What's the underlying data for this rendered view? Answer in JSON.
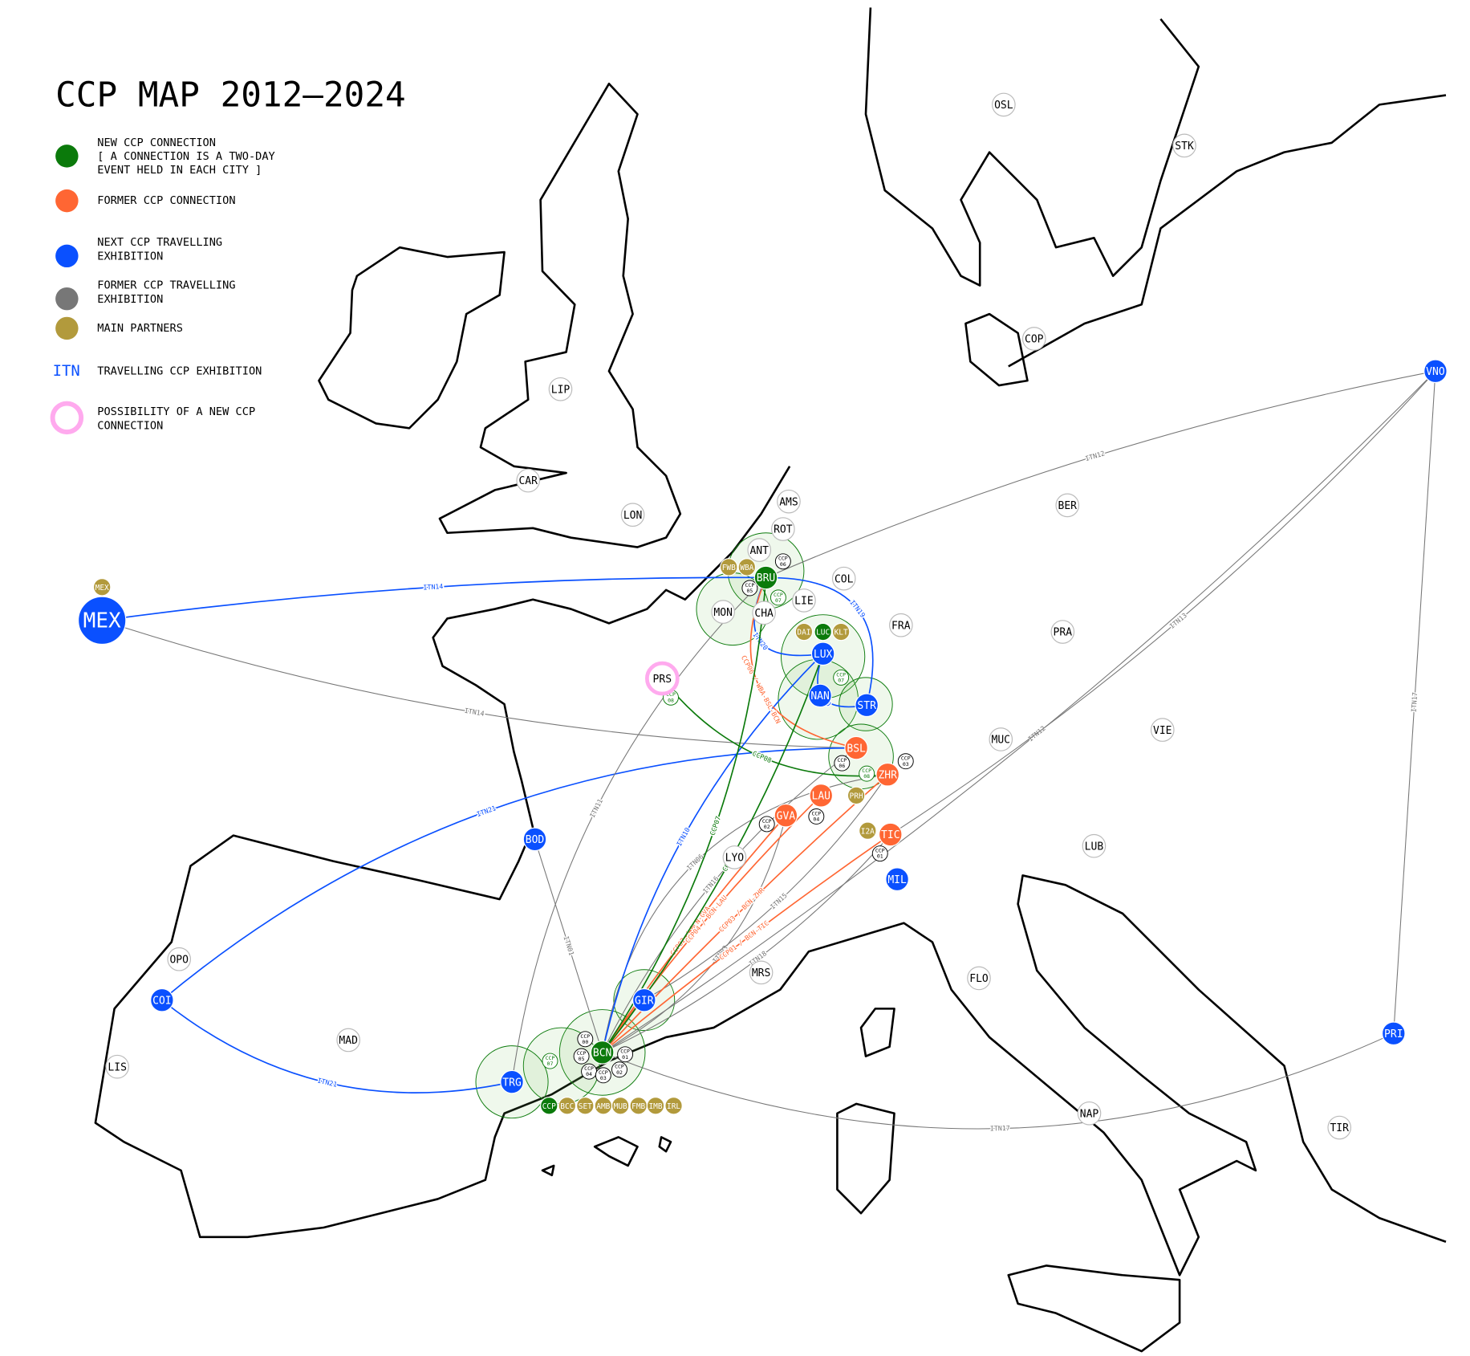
{
  "title": "CCP MAP 2012–2024",
  "legend": [
    {
      "lines": [
        "NEW CCP CONNECTION",
        "[ A CONNECTION IS A TWO-DAY",
        "EVENT HELD IN EACH CITY ]"
      ],
      "color": "#0b7a0b"
    },
    {
      "lines": [
        "FORMER CCP CONNECTION"
      ],
      "color": "#ff6633"
    },
    {
      "lines": [
        "NEXT CCP TRAVELLING",
        "EXHIBITION"
      ],
      "color": "#0a50ff"
    },
    {
      "lines": [
        "FORMER CCP TRAVELLING",
        "EXHIBITION"
      ],
      "color": "#777777"
    },
    {
      "lines": [
        "MAIN PARTNERS"
      ],
      "color": "#b29a3c"
    },
    {
      "lines": [
        "TRAVELLING CCP EXHIBITION"
      ],
      "symbol": "ITN",
      "color": "#0a50ff"
    },
    {
      "lines": [
        "POSSIBILITY OF A NEW CCP",
        "CONNECTION"
      ],
      "color": "#ffaaee",
      "ring": true
    }
  ],
  "nodes": [
    {
      "label": "OSL"
    },
    {
      "label": "STK"
    },
    {
      "label": "COP"
    },
    {
      "label": "LIP"
    },
    {
      "label": "CAR"
    },
    {
      "label": "LON"
    },
    {
      "label": "AMS"
    },
    {
      "label": "ROT"
    },
    {
      "label": "BER"
    },
    {
      "label": "ANT"
    },
    {
      "label": "COL"
    },
    {
      "label": "LIE"
    },
    {
      "label": "CHA"
    },
    {
      "label": "MON"
    },
    {
      "label": "FRA"
    },
    {
      "label": "PRA"
    },
    {
      "label": "MUC"
    },
    {
      "label": "VIE"
    },
    {
      "label": "LYO"
    },
    {
      "label": "LUB"
    },
    {
      "label": "OPO"
    },
    {
      "label": "MRS"
    },
    {
      "label": "FLO"
    },
    {
      "label": "MAD"
    },
    {
      "label": "LIS"
    },
    {
      "label": "NAP"
    },
    {
      "label": "TIR"
    },
    {
      "label": "BRU",
      "legend": 0
    },
    {
      "label": "BCN",
      "legend": 0
    },
    {
      "label": "LUC",
      "legend": 0
    },
    {
      "label": "BSL",
      "legend": 1
    },
    {
      "label": "ZHR",
      "legend": 1
    },
    {
      "label": "LAU",
      "legend": 1
    },
    {
      "label": "GVA",
      "legend": 1
    },
    {
      "label": "TIC",
      "legend": 1
    },
    {
      "label": "MEX",
      "legend": 2
    },
    {
      "label": "LUX",
      "legend": 2
    },
    {
      "label": "NAN",
      "legend": 2
    },
    {
      "label": "STR",
      "legend": 2
    },
    {
      "label": "BOD",
      "legend": 2
    },
    {
      "label": "MIL",
      "legend": 2
    },
    {
      "label": "COI",
      "legend": 2
    },
    {
      "label": "GIR",
      "legend": 2
    },
    {
      "label": "TRG",
      "legend": 2
    },
    {
      "label": "VNO",
      "legend": 2
    },
    {
      "label": "PRI",
      "legend": 2
    },
    {
      "label": "MEX",
      "legend": 4
    },
    {
      "label": "FWB",
      "legend": 4
    },
    {
      "label": "WBA",
      "legend": 4
    },
    {
      "label": "DAI",
      "legend": 4
    },
    {
      "label": "KLT",
      "legend": 4
    },
    {
      "label": "PRH",
      "legend": 4
    },
    {
      "label": "I2A",
      "legend": 4
    },
    {
      "label": "CCP",
      "legend": 0
    },
    {
      "label": "BCC",
      "legend": 4
    },
    {
      "label": "SET",
      "legend": 4
    },
    {
      "label": "AMB",
      "legend": 4
    },
    {
      "label": "MUB",
      "legend": 4
    },
    {
      "label": "FMB",
      "legend": 4
    },
    {
      "label": "IMB",
      "legend": 4
    },
    {
      "label": "IRL",
      "legend": 4
    },
    {
      "label": "PRS",
      "legend": 6
    }
  ],
  "badges": [
    {
      "lines": [
        "CCP",
        "06"
      ]
    },
    {
      "lines": [
        "CCP",
        "05"
      ]
    },
    {
      "lines": [
        "CCP",
        "07"
      ],
      "legend": 0
    },
    {
      "lines": [
        "CCP",
        "07"
      ],
      "legend": 0
    },
    {
      "lines": [
        "CCP",
        "08"
      ],
      "legend": 0
    },
    {
      "lines": [
        "CCP",
        "06"
      ]
    },
    {
      "lines": [
        "CCP",
        "03"
      ]
    },
    {
      "lines": [
        "CCP",
        "08"
      ],
      "legend": 0
    },
    {
      "lines": [
        "CCP",
        "02"
      ]
    },
    {
      "lines": [
        "CCP",
        "04"
      ]
    },
    {
      "lines": [
        "CCP",
        "01"
      ]
    },
    {
      "lines": [
        "CCP",
        "07"
      ],
      "legend": 0
    },
    {
      "lines": [
        "CCP",
        "00"
      ]
    },
    {
      "lines": [
        "CCP",
        "05"
      ]
    },
    {
      "lines": [
        "CCP",
        "04"
      ]
    },
    {
      "lines": [
        "CCP",
        "03"
      ]
    },
    {
      "lines": [
        "CCP",
        "02"
      ]
    },
    {
      "lines": [
        "CCP",
        "01"
      ]
    }
  ],
  "routes": [
    {
      "label": "ITN14",
      "legend": 2
    },
    {
      "label": "ITN14",
      "legend": 3
    },
    {
      "label": "ITN12",
      "legend": 3
    },
    {
      "label": "ITN12",
      "legend": 3
    },
    {
      "label": "ITN17",
      "legend": 3
    },
    {
      "label": "ITN17",
      "legend": 3
    },
    {
      "label": "ITN13",
      "legend": 3
    },
    {
      "label": "ITN20",
      "legend": 2
    },
    {
      "label": "ITN19",
      "legend": 2
    },
    {
      "label": "ITN21",
      "legend": 2
    },
    {
      "label": "ITN21",
      "legend": 2
    },
    {
      "label": "ITN11",
      "legend": 3
    },
    {
      "label": "ITN16",
      "legend": 3
    },
    {
      "label": "ITN18",
      "legend": 3
    },
    {
      "label": "ITN06",
      "legend": 3
    },
    {
      "label": "ITN01",
      "legend": 3
    },
    {
      "label": "ITN03",
      "legend": 3
    },
    {
      "label": "ITN15",
      "legend": 3
    },
    {
      "label": "ITN10",
      "legend": 2
    },
    {
      "label": "ITN20",
      "legend": 2
    },
    {
      "label": "CCP06 / WBA-BSL-BCN",
      "legend": 1
    },
    {
      "label": "CCP02 / BCN-GVA",
      "legend": 1
    },
    {
      "label": "CCP04 / BCN-LAU",
      "legend": 1
    },
    {
      "label": "CCP03 / BCN-ZHR",
      "legend": 1
    },
    {
      "label": "CCP01 / BCN-TIC",
      "legend": 1
    },
    {
      "label": "CCP07",
      "legend": 0
    },
    {
      "label": "CCP08",
      "legend": 0
    },
    {
      "label": "CCP07",
      "legend": 0
    }
  ]
}
